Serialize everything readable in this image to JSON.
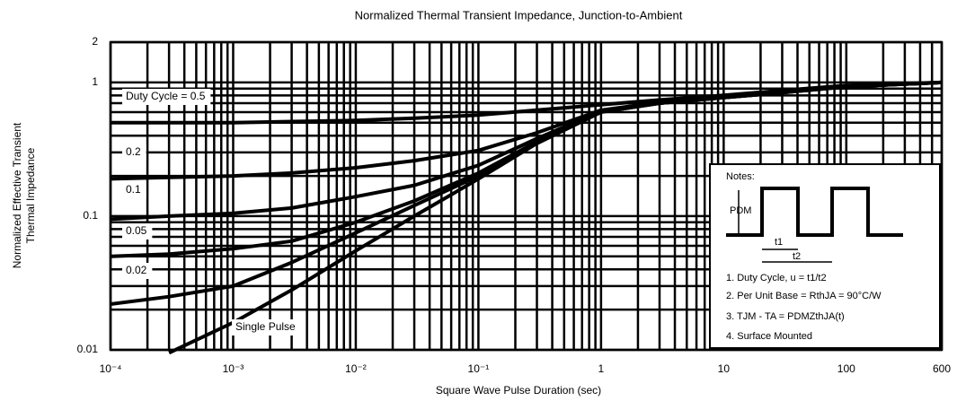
{
  "chart_data": {
    "type": "line",
    "title": "Normalized Thermal Transient Impedance, Junction-to-Ambient",
    "xlabel": "Square Wave Pulse Duration (sec)",
    "ylabel": [
      "Normalized Effective Transient",
      "Thermal Impedance"
    ],
    "xscale": "log",
    "yscale": "log",
    "grid": true,
    "xlim": [
      0.0001,
      600
    ],
    "ylim": [
      0.01,
      2
    ],
    "xticks": [
      {
        "value": 0.0001,
        "label": "10⁻⁴"
      },
      {
        "value": 0.001,
        "label": "10⁻³"
      },
      {
        "value": 0.01,
        "label": "10⁻²"
      },
      {
        "value": 0.1,
        "label": "10⁻¹"
      },
      1,
      10,
      100,
      600
    ],
    "yticks": [
      0.01,
      0.1,
      1,
      2
    ],
    "x": [
      0.0001,
      0.0003,
      0.001,
      0.003,
      0.01,
      0.03,
      0.1,
      0.3,
      1,
      3,
      10,
      30,
      100,
      600
    ],
    "series": [
      {
        "name": "Duty Cycle = 0.5",
        "color": "#000000",
        "values": [
          0.5,
          0.5,
          0.5,
          0.51,
          0.52,
          0.54,
          0.57,
          0.62,
          0.68,
          0.74,
          0.8,
          0.87,
          0.95,
          1
        ]
      },
      {
        "name": "0.2",
        "color": "#000000",
        "values": [
          0.19,
          0.195,
          0.2,
          0.21,
          0.23,
          0.26,
          0.31,
          0.42,
          0.62,
          0.71,
          0.79,
          0.86,
          0.94,
          1
        ]
      },
      {
        "name": "0.1",
        "color": "#000000",
        "values": [
          0.095,
          0.1,
          0.105,
          0.115,
          0.14,
          0.17,
          0.24,
          0.38,
          0.61,
          0.7,
          0.78,
          0.85,
          0.93,
          1
        ]
      },
      {
        "name": "0.05",
        "color": "#000000",
        "values": [
          0.05,
          0.052,
          0.057,
          0.065,
          0.09,
          0.13,
          0.21,
          0.36,
          0.6,
          0.7,
          0.77,
          0.84,
          0.93,
          1
        ]
      },
      {
        "name": "0.02",
        "color": "#000000",
        "values": [
          0.022,
          0.025,
          0.03,
          0.045,
          0.075,
          0.12,
          0.2,
          0.35,
          0.6,
          0.7,
          0.77,
          0.84,
          0.93,
          1
        ]
      },
      {
        "name": "Single Pulse",
        "color": "#000000",
        "values": [
          null,
          0.0095,
          0.016,
          0.028,
          0.055,
          0.1,
          0.19,
          0.35,
          0.6,
          0.7,
          0.77,
          0.84,
          0.93,
          1
        ]
      }
    ],
    "notes": {
      "title": "Notes:",
      "pdm": "PDM",
      "t1": "t1",
      "t2": "t2",
      "items": [
        "1. Duty Cycle, u = t1/t2",
        "2. Per Unit Base = RthJA = 90°C/W",
        "3. TJM - TA = PDMZthJA(t)",
        "4. Surface Mounted"
      ]
    }
  }
}
